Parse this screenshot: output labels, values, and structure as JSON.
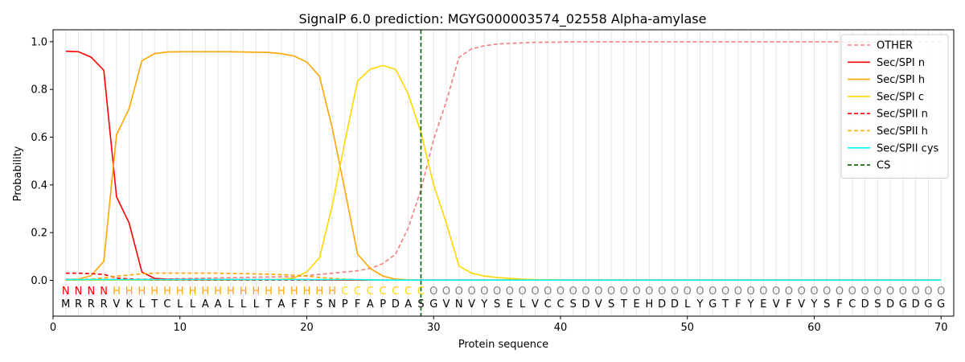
{
  "chart_data": {
    "type": "line",
    "title": "SignalP 6.0 prediction: MGYG000003574_02558 Alpha-amylase",
    "xlabel": "Protein sequence",
    "ylabel": "Probability",
    "xlim": [
      0,
      71
    ],
    "ylim": [
      -0.15,
      1.05
    ],
    "x_ticks": [
      0,
      10,
      20,
      30,
      40,
      50,
      60,
      70
    ],
    "y_ticks": [
      0.0,
      0.2,
      0.4,
      0.6,
      0.8,
      1.0
    ],
    "x_tick_labels": [
      "0",
      "10",
      "20",
      "30",
      "40",
      "50",
      "60",
      "70"
    ],
    "y_tick_labels": [
      "0.0",
      "0.2",
      "0.4",
      "0.6",
      "0.8",
      "1.0"
    ],
    "grid": "vertical lines at each residue",
    "legend_position": "top-right",
    "cleavage_site": 29,
    "sequence": [
      "M",
      "R",
      "R",
      "R",
      "V",
      "K",
      "L",
      "T",
      "C",
      "L",
      "L",
      "A",
      "A",
      "L",
      "L",
      "L",
      "T",
      "A",
      "F",
      "F",
      "S",
      "N",
      "P",
      "F",
      "A",
      "P",
      "D",
      "A",
      "S",
      "G",
      "V",
      "N",
      "V",
      "Y",
      "S",
      "E",
      "L",
      "V",
      "C",
      "C",
      "S",
      "D",
      "V",
      "S",
      "T",
      "E",
      "H",
      "D",
      "D",
      "L",
      "Y",
      "G",
      "T",
      "F",
      "Y",
      "E",
      "V",
      "F",
      "V",
      "Y",
      "S",
      "F",
      "C",
      "D",
      "S",
      "D",
      "G",
      "D",
      "G",
      "G"
    ],
    "labels": [
      "N",
      "N",
      "N",
      "N",
      "H",
      "H",
      "H",
      "H",
      "H",
      "H",
      "H",
      "H",
      "H",
      "H",
      "H",
      "H",
      "H",
      "H",
      "H",
      "H",
      "H",
      "H",
      "C",
      "C",
      "C",
      "C",
      "C",
      "C",
      "C",
      "O",
      "O",
      "O",
      "O",
      "O",
      "O",
      "O",
      "O",
      "O",
      "O",
      "O",
      "O",
      "O",
      "O",
      "O",
      "O",
      "O",
      "O",
      "O",
      "O",
      "O",
      "O",
      "O",
      "O",
      "O",
      "O",
      "O",
      "O",
      "O",
      "O",
      "O",
      "O",
      "O",
      "O",
      "O",
      "O",
      "O",
      "O",
      "O",
      "O",
      "O"
    ],
    "label_colors": {
      "N": "#ff0000",
      "H": "#ffa500",
      "C": "#ffd700",
      "O": "#808080"
    },
    "x": [
      1,
      2,
      3,
      4,
      5,
      6,
      7,
      8,
      9,
      10,
      11,
      12,
      13,
      14,
      15,
      16,
      17,
      18,
      19,
      20,
      21,
      22,
      23,
      24,
      25,
      26,
      27,
      28,
      29,
      30,
      31,
      32,
      33,
      34,
      35,
      36,
      37,
      38,
      39,
      40,
      41,
      42,
      43,
      44,
      45,
      46,
      47,
      48,
      49,
      50,
      51,
      52,
      53,
      54,
      55,
      56,
      57,
      58,
      59,
      60,
      61,
      62,
      63,
      64,
      65,
      66,
      67,
      68,
      69,
      70
    ],
    "series": [
      {
        "name": "OTHER",
        "color": "#f08080",
        "dash": "dashed",
        "values": [
          0.005,
          0.005,
          0.005,
          0.005,
          0.005,
          0.005,
          0.005,
          0.006,
          0.006,
          0.007,
          0.008,
          0.009,
          0.01,
          0.011,
          0.012,
          0.013,
          0.014,
          0.015,
          0.016,
          0.02,
          0.025,
          0.03,
          0.035,
          0.04,
          0.05,
          0.07,
          0.11,
          0.22,
          0.38,
          0.59,
          0.75,
          0.935,
          0.97,
          0.983,
          0.99,
          0.993,
          0.995,
          0.997,
          0.998,
          0.998,
          0.999,
          0.999,
          0.999,
          0.999,
          0.999,
          0.999,
          0.999,
          0.999,
          0.999,
          0.999,
          0.999,
          0.999,
          0.999,
          0.999,
          0.999,
          0.999,
          0.999,
          0.999,
          0.999,
          0.999,
          0.999,
          0.999,
          0.999,
          0.999,
          0.999,
          0.999,
          0.999,
          0.999,
          0.999,
          0.999
        ]
      },
      {
        "name": "Sec/SPI n",
        "color": "#ff0000",
        "dash": "solid",
        "values": [
          0.96,
          0.958,
          0.935,
          0.88,
          0.35,
          0.24,
          0.035,
          0.008,
          0.005,
          0.004,
          0.004,
          0.003,
          0.003,
          0.003,
          0.003,
          0.003,
          0.003,
          0.003,
          0.003,
          0.003,
          0.002,
          0.002,
          0.001,
          0.001,
          0.001,
          0.001,
          0.001,
          0.001,
          0.001,
          0.001,
          0.001,
          0.001,
          0.001,
          0.001,
          0.001,
          0.001,
          0.001,
          0.001,
          0.001,
          0.001,
          0.001,
          0.001,
          0.001,
          0.001,
          0.001,
          0.001,
          0.001,
          0.001,
          0.001,
          0.001,
          0.001,
          0.001,
          0.001,
          0.001,
          0.001,
          0.001,
          0.001,
          0.001,
          0.001,
          0.001,
          0.001,
          0.001,
          0.001,
          0.001,
          0.001,
          0.001,
          0.001,
          0.001,
          0.001,
          0.001
        ]
      },
      {
        "name": "Sec/SPI h",
        "color": "#ffa500",
        "dash": "solid",
        "values": [
          0.003,
          0.005,
          0.02,
          0.08,
          0.61,
          0.72,
          0.92,
          0.95,
          0.957,
          0.958,
          0.958,
          0.958,
          0.958,
          0.958,
          0.957,
          0.956,
          0.955,
          0.95,
          0.94,
          0.915,
          0.855,
          0.64,
          0.38,
          0.11,
          0.05,
          0.018,
          0.005,
          0.002,
          0.001,
          0.001,
          0.001,
          0.001,
          0.001,
          0.001,
          0.001,
          0.001,
          0.001,
          0.001,
          0.001,
          0.001,
          0.001,
          0.001,
          0.001,
          0.001,
          0.001,
          0.001,
          0.001,
          0.001,
          0.001,
          0.001,
          0.001,
          0.001,
          0.001,
          0.001,
          0.001,
          0.001,
          0.001,
          0.001,
          0.001,
          0.001,
          0.001,
          0.001,
          0.001,
          0.001,
          0.001,
          0.001,
          0.001,
          0.001,
          0.001,
          0.001
        ]
      },
      {
        "name": "Sec/SPI c",
        "color": "#ffd700",
        "dash": "solid",
        "values": [
          0.001,
          0.001,
          0.001,
          0.001,
          0.001,
          0.001,
          0.001,
          0.001,
          0.001,
          0.001,
          0.001,
          0.001,
          0.001,
          0.001,
          0.002,
          0.002,
          0.003,
          0.005,
          0.01,
          0.035,
          0.095,
          0.31,
          0.58,
          0.835,
          0.885,
          0.9,
          0.885,
          0.78,
          0.62,
          0.4,
          0.24,
          0.06,
          0.03,
          0.018,
          0.012,
          0.008,
          0.005,
          0.003,
          0.002,
          0.001,
          0.001,
          0.001,
          0.001,
          0.001,
          0.001,
          0.001,
          0.001,
          0.001,
          0.001,
          0.001,
          0.001,
          0.001,
          0.001,
          0.001,
          0.001,
          0.001,
          0.001,
          0.001,
          0.001,
          0.001,
          0.001,
          0.001,
          0.001,
          0.001,
          0.001,
          0.001,
          0.001,
          0.001,
          0.001,
          0.001
        ]
      },
      {
        "name": "Sec/SPII n",
        "color": "#ff0000",
        "dash": "dashed",
        "values": [
          0.03,
          0.03,
          0.028,
          0.025,
          0.01,
          0.006,
          0.003,
          0.002,
          0.002,
          0.002,
          0.001,
          0.001,
          0.001,
          0.001,
          0.001,
          0.001,
          0.001,
          0.001,
          0.001,
          0.001,
          0.001,
          0.001,
          0.001,
          0.001,
          0.001,
          0.001,
          0.001,
          0.001,
          0.001,
          0.001,
          0.001,
          0.001,
          0.001,
          0.001,
          0.001,
          0.001,
          0.001,
          0.001,
          0.001,
          0.001,
          0.001,
          0.001,
          0.001,
          0.001,
          0.001,
          0.001,
          0.001,
          0.001,
          0.001,
          0.001,
          0.001,
          0.001,
          0.001,
          0.001,
          0.001,
          0.001,
          0.001,
          0.001,
          0.001,
          0.001,
          0.001,
          0.001,
          0.001,
          0.001,
          0.001,
          0.001,
          0.001,
          0.001,
          0.001,
          0.001
        ]
      },
      {
        "name": "Sec/SPII h",
        "color": "#ffa500",
        "dash": "dashed",
        "values": [
          0.001,
          0.002,
          0.005,
          0.01,
          0.018,
          0.022,
          0.028,
          0.03,
          0.03,
          0.03,
          0.03,
          0.03,
          0.03,
          0.029,
          0.028,
          0.027,
          0.026,
          0.024,
          0.022,
          0.018,
          0.012,
          0.008,
          0.005,
          0.003,
          0.002,
          0.001,
          0.001,
          0.001,
          0.001,
          0.001,
          0.001,
          0.001,
          0.001,
          0.001,
          0.001,
          0.001,
          0.001,
          0.001,
          0.001,
          0.001,
          0.001,
          0.001,
          0.001,
          0.001,
          0.001,
          0.001,
          0.001,
          0.001,
          0.001,
          0.001,
          0.001,
          0.001,
          0.001,
          0.001,
          0.001,
          0.001,
          0.001,
          0.001,
          0.001,
          0.001,
          0.001,
          0.001,
          0.001,
          0.001,
          0.001,
          0.001,
          0.001,
          0.001,
          0.001,
          0.001
        ]
      },
      {
        "name": "Sec/SPII cys",
        "color": "#00ffff",
        "dash": "solid",
        "values": [
          0.003,
          0.003,
          0.003,
          0.003,
          0.003,
          0.003,
          0.003,
          0.003,
          0.003,
          0.003,
          0.003,
          0.003,
          0.003,
          0.003,
          0.003,
          0.003,
          0.003,
          0.003,
          0.003,
          0.003,
          0.003,
          0.003,
          0.003,
          0.003,
          0.002,
          0.001,
          0.001,
          0.001,
          0.001,
          0.001,
          0.001,
          0.001,
          0.001,
          0.001,
          0.001,
          0.001,
          0.001,
          0.001,
          0.001,
          0.001,
          0.001,
          0.001,
          0.001,
          0.001,
          0.001,
          0.001,
          0.001,
          0.001,
          0.001,
          0.001,
          0.001,
          0.001,
          0.001,
          0.001,
          0.001,
          0.001,
          0.001,
          0.001,
          0.001,
          0.001,
          0.001,
          0.001,
          0.001,
          0.001,
          0.001,
          0.001,
          0.001,
          0.001,
          0.001,
          0.001
        ]
      }
    ],
    "cs_legend": {
      "name": "CS",
      "color": "#006400",
      "dash": "dashed"
    }
  }
}
